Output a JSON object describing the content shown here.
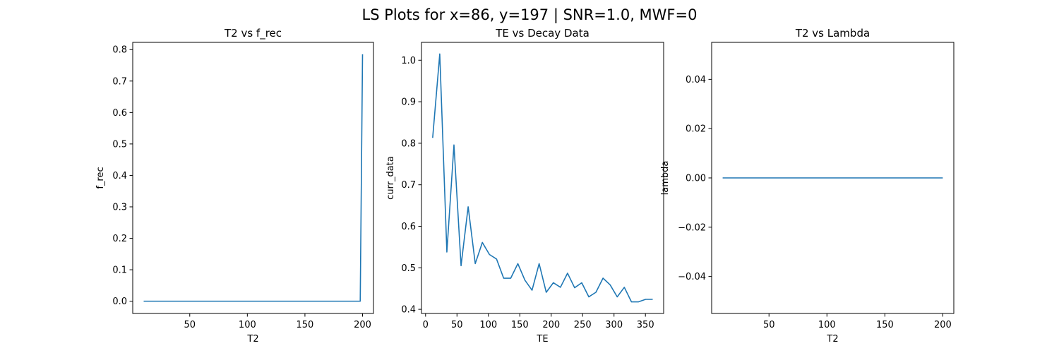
{
  "figure": {
    "suptitle": "LS Plots for x=86, y=197 | SNR=1.0, MWF=0"
  },
  "chart_data": [
    {
      "type": "line",
      "title": "T2 vs f_rec",
      "xlabel": "T2",
      "ylabel": "f_rec",
      "xlim": [
        0.5,
        209.5
      ],
      "ylim": [
        -0.039,
        0.823
      ],
      "xticks": [
        50,
        100,
        150,
        200
      ],
      "yticks": [
        0.0,
        0.1,
        0.2,
        0.3,
        0.4,
        0.5,
        0.6,
        0.7,
        0.8
      ],
      "color": "#1f77b4",
      "x": [
        10,
        198,
        200
      ],
      "y": [
        0.0,
        0.0,
        0.785
      ]
    },
    {
      "type": "line",
      "title": "TE vs Decay Data",
      "xlabel": "TE",
      "ylabel": "curr_data",
      "xlim": [
        -6.5,
        379
      ],
      "ylim": [
        0.39,
        1.043
      ],
      "xticks": [
        0,
        50,
        100,
        150,
        200,
        250,
        300,
        350
      ],
      "yticks": [
        0.4,
        0.5,
        0.6,
        0.7,
        0.8,
        0.9,
        1.0
      ],
      "color": "#1f77b4",
      "x": [
        11.3,
        22.6,
        33.9,
        45.2,
        56.5,
        67.8,
        79.1,
        90.4,
        101.7,
        113,
        124.3,
        135.6,
        146.9,
        158.2,
        169.5,
        180.8,
        192.1,
        203.4,
        214.7,
        226,
        237.3,
        248.6,
        259.9,
        271.2,
        282.5,
        293.8,
        305.1,
        316.4,
        327.7,
        339,
        350.3,
        361.6
      ],
      "y": [
        0.813,
        1.015,
        0.538,
        0.796,
        0.505,
        0.647,
        0.51,
        0.561,
        0.532,
        0.521,
        0.475,
        0.475,
        0.51,
        0.47,
        0.446,
        0.51,
        0.441,
        0.464,
        0.453,
        0.487,
        0.452,
        0.464,
        0.43,
        0.441,
        0.475,
        0.459,
        0.43,
        0.453,
        0.418,
        0.418,
        0.424,
        0.424
      ]
    },
    {
      "type": "line",
      "title": "T2 vs Lambda",
      "xlabel": "T2",
      "ylabel": "lambda",
      "xlim": [
        0.5,
        209.5
      ],
      "ylim": [
        -0.055,
        0.055
      ],
      "xticks": [
        50,
        100,
        150,
        200
      ],
      "yticks": [
        -0.04,
        -0.02,
        0.0,
        0.02,
        0.04
      ],
      "ytick_labels": [
        "−0.04",
        "−0.02",
        "0.00",
        "0.02",
        "0.04"
      ],
      "color": "#1f77b4",
      "x": [
        10,
        200
      ],
      "y": [
        0.0,
        0.0
      ]
    }
  ]
}
